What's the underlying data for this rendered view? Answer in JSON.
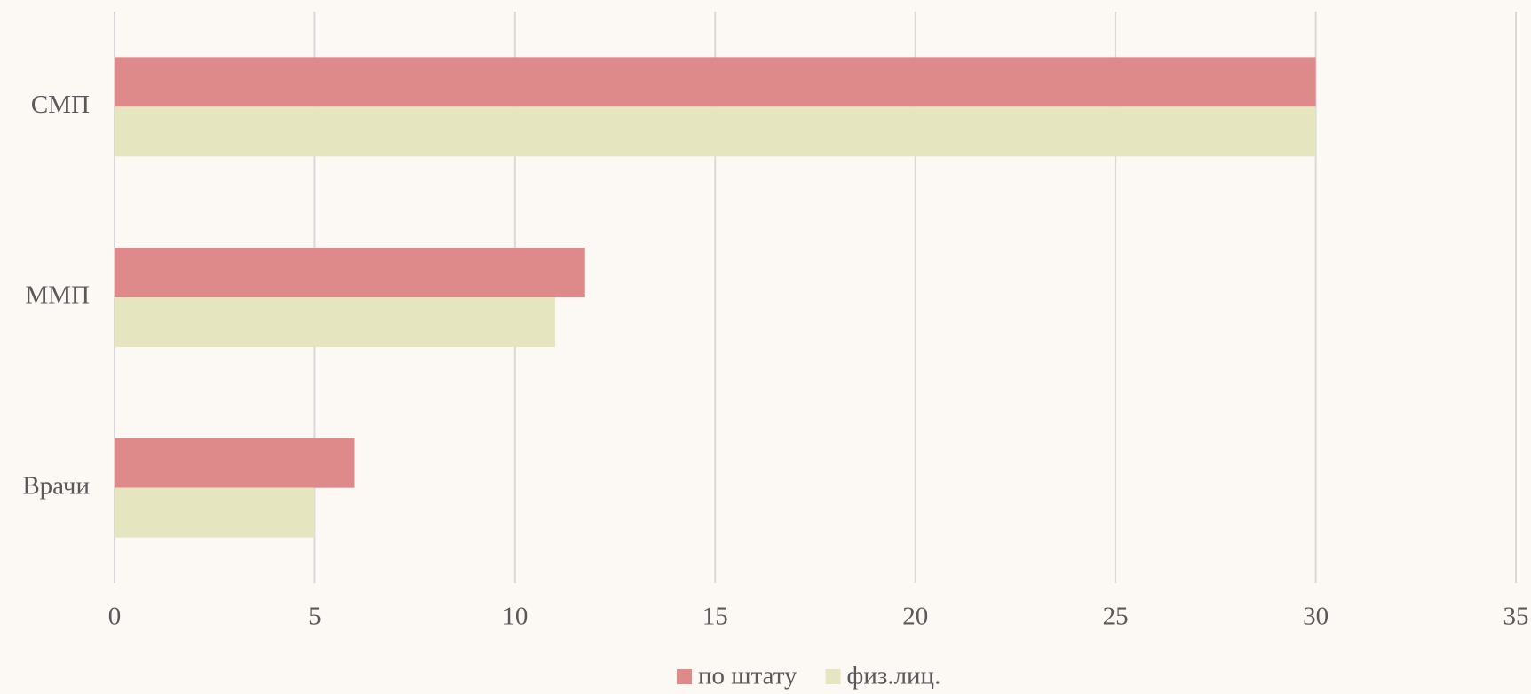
{
  "chart_data": {
    "type": "barh",
    "categories": [
      "СМП",
      "ММП",
      "Врачи"
    ],
    "series": [
      {
        "name": "по штату",
        "color": "#de8a8a",
        "values": [
          30,
          11.75,
          6
        ]
      },
      {
        "name": "физ.лиц.",
        "color": "#e5e6c0",
        "values": [
          30,
          11,
          5
        ]
      }
    ],
    "xlim": [
      0,
      35
    ],
    "xticks": [
      0,
      5,
      10,
      15,
      20,
      25,
      30,
      35
    ],
    "grid": true,
    "legend": "bottom"
  }
}
